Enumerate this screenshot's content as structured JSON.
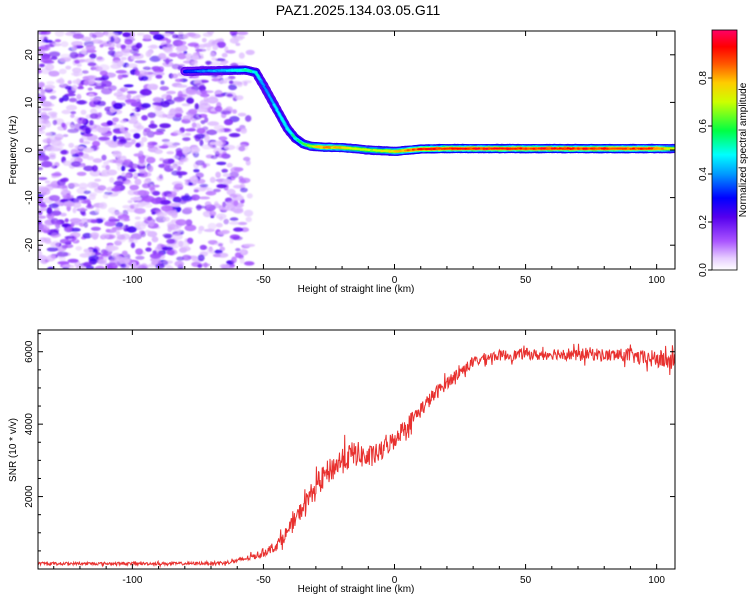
{
  "title": "PAZ1.2025.134.03.05.G11",
  "chart_data": [
    {
      "type": "heatmap",
      "xlabel": "Height of straight line (km)",
      "ylabel": "Frequency (Hz)",
      "xlim": [
        -136,
        107
      ],
      "ylim": [
        -25,
        25
      ],
      "xticks": [
        -100,
        -50,
        0,
        50,
        100
      ],
      "yticks": [
        -20,
        -10,
        0,
        10,
        20
      ],
      "colorbar": {
        "label": "Normalized spectral amplitude",
        "range": [
          0,
          1
        ],
        "ticks": [
          0.0,
          0.2,
          0.4,
          0.6,
          0.8
        ],
        "colormap": [
          "#ffffff",
          "#d9b3ff",
          "#9933ff",
          "#6600cc",
          "#0000ff",
          "#00ffff",
          "#00ff00",
          "#ffff00",
          "#ff8000",
          "#ff0000",
          "#ff0066"
        ]
      },
      "ridge": {
        "description": "dominant frequency track",
        "x": [
          -80,
          -65,
          -57,
          -53,
          -50,
          -47,
          -44,
          -41,
          -38,
          -35,
          -32,
          -28,
          -20,
          -10,
          0,
          10,
          20,
          40,
          60,
          80,
          100,
          107
        ],
        "y": [
          16.5,
          16.7,
          16.8,
          16.3,
          13.5,
          10.5,
          7.5,
          4.5,
          2.5,
          1.3,
          0.8,
          0.6,
          0.5,
          0.0,
          -0.3,
          0.2,
          0.3,
          0.3,
          0.3,
          0.3,
          0.3,
          0.3
        ],
        "amplitude": [
          0.35,
          0.45,
          0.55,
          0.5,
          0.42,
          0.45,
          0.5,
          0.5,
          0.55,
          0.62,
          0.72,
          0.85,
          0.8,
          0.7,
          0.78,
          0.95,
          0.95,
          0.95,
          0.95,
          0.95,
          0.9,
          0.7
        ]
      },
      "noise_region": {
        "x": [
          -136,
          -55
        ],
        "y": [
          -25,
          25
        ],
        "amplitude": [
          0.05,
          0.25
        ]
      }
    },
    {
      "type": "line",
      "xlabel": "Height of straight line (km)",
      "ylabel": "SNR (10 * v/v)",
      "xlim": [
        -136,
        107
      ],
      "ylim": [
        0,
        6600
      ],
      "xticks": [
        -100,
        -50,
        0,
        50,
        100
      ],
      "yticks": [
        2000,
        4000,
        6000
      ],
      "series": [
        {
          "color": "#e8312f",
          "x": [
            -136,
            -120,
            -100,
            -80,
            -65,
            -60,
            -55,
            -50,
            -45,
            -40,
            -35,
            -30,
            -25,
            -20,
            -15,
            -10,
            -5,
            0,
            5,
            10,
            15,
            20,
            25,
            30,
            35,
            40,
            45,
            50,
            55,
            60,
            65,
            70,
            75,
            80,
            85,
            90,
            95,
            100,
            105,
            107
          ],
          "values": [
            150,
            150,
            150,
            150,
            170,
            230,
            320,
            450,
            650,
            1100,
            1700,
            2300,
            2700,
            3000,
            3200,
            3050,
            3250,
            3600,
            4000,
            4400,
            4800,
            5150,
            5450,
            5700,
            5850,
            5900,
            5900,
            5950,
            5900,
            5950,
            5950,
            5900,
            5950,
            5900,
            5900,
            5900,
            5800,
            5800,
            5750,
            5800
          ],
          "noise": [
            40,
            40,
            40,
            40,
            50,
            60,
            80,
            120,
            150,
            220,
            250,
            300,
            350,
            380,
            360,
            320,
            280,
            260,
            240,
            220,
            200,
            180,
            160,
            150,
            140,
            150,
            150,
            150,
            150,
            160,
            180,
            180,
            180,
            180,
            180,
            200,
            220,
            260,
            280,
            280
          ]
        }
      ]
    }
  ]
}
